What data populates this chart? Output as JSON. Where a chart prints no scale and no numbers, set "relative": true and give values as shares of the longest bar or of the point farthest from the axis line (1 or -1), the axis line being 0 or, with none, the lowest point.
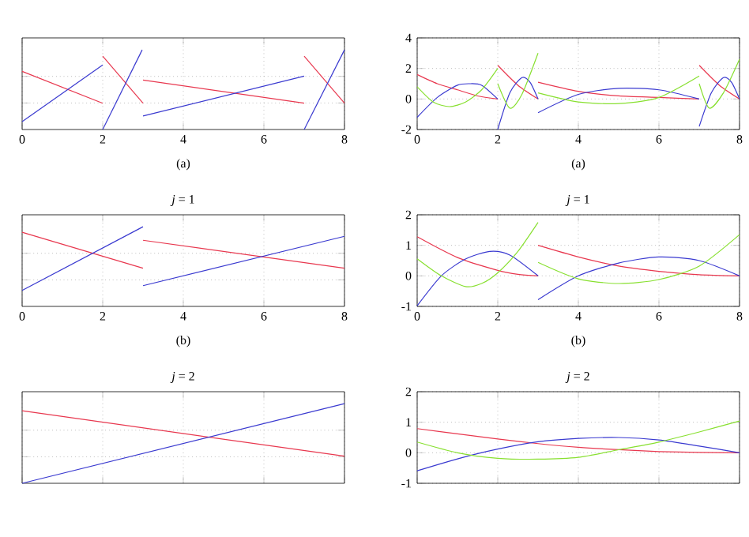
{
  "chart_data": [
    {
      "type": "line",
      "relative": true,
      "grid": true,
      "tick_labels": "x",
      "xlim": [
        0,
        8
      ],
      "xticks": [
        0,
        2,
        4,
        6,
        8
      ],
      "annotations": [
        "(a)"
      ],
      "series": [
        {
          "color": "#e8384f",
          "x": [
            0,
            2
          ],
          "values": [
            0.73,
            0.33
          ]
        },
        {
          "color": "#3a3ad0",
          "x": [
            0,
            2
          ],
          "values": [
            0.1,
            0.81
          ]
        },
        {
          "color": "#e8384f",
          "x": [
            2,
            3
          ],
          "values": [
            0.92,
            0.33
          ]
        },
        {
          "color": "#3a3ad0",
          "x": [
            2,
            2.98
          ],
          "values": [
            0,
            1
          ]
        },
        {
          "color": "#e8384f",
          "x": [
            3,
            7
          ],
          "values": [
            0.62,
            0.33
          ]
        },
        {
          "color": "#3a3ad0",
          "x": [
            3,
            7
          ],
          "values": [
            0.17,
            0.67
          ]
        },
        {
          "color": "#e8384f",
          "x": [
            7,
            8
          ],
          "values": [
            0.92,
            0.33
          ]
        },
        {
          "color": "#3a3ad0",
          "x": [
            7,
            8
          ],
          "values": [
            0,
            1
          ]
        }
      ]
    },
    {
      "type": "line",
      "grid": true,
      "xlim": [
        0,
        8
      ],
      "xticks": [
        0,
        2,
        4,
        6,
        8
      ],
      "ylim": [
        -2,
        4
      ],
      "yticks": [
        -2,
        0,
        2,
        4
      ],
      "annotations": [
        "(a)"
      ],
      "series": [
        {
          "color": "#e8384f",
          "x": [
            0,
            0.5,
            1,
            1.5,
            2
          ],
          "values": [
            1.6,
            1.0,
            0.6,
            0.2,
            0
          ]
        },
        {
          "color": "#3a3ad0",
          "x": [
            0,
            0.5,
            1,
            1.3,
            1.6,
            2
          ],
          "values": [
            -1.2,
            0.1,
            0.9,
            1.0,
            0.9,
            0
          ]
        },
        {
          "color": "#88e030",
          "x": [
            0,
            0.4,
            0.8,
            1.2,
            1.6,
            2
          ],
          "values": [
            0.8,
            -0.2,
            -0.5,
            -0.2,
            0.6,
            2.0
          ]
        },
        {
          "color": "#e8384f",
          "x": [
            2,
            2.5,
            3
          ],
          "values": [
            2.2,
            0.9,
            0
          ]
        },
        {
          "color": "#3a3ad0",
          "x": [
            2,
            2.3,
            2.6,
            2.8,
            3
          ],
          "values": [
            -2.0,
            0.4,
            1.4,
            1.1,
            0
          ]
        },
        {
          "color": "#88e030",
          "x": [
            2,
            2.3,
            2.6,
            3
          ],
          "values": [
            1.0,
            -0.6,
            0.3,
            3.0
          ]
        },
        {
          "color": "#e8384f",
          "x": [
            3,
            4,
            5,
            6,
            7
          ],
          "values": [
            1.1,
            0.5,
            0.2,
            0.1,
            0
          ]
        },
        {
          "color": "#3a3ad0",
          "x": [
            3,
            4,
            5,
            6,
            7
          ],
          "values": [
            -0.9,
            0.3,
            0.7,
            0.6,
            0
          ]
        },
        {
          "color": "#88e030",
          "x": [
            3,
            4,
            5,
            6,
            7
          ],
          "values": [
            0.4,
            -0.2,
            -0.3,
            0.1,
            1.5
          ]
        },
        {
          "color": "#e8384f",
          "x": [
            7,
            7.5,
            8
          ],
          "values": [
            2.2,
            0.9,
            0
          ]
        },
        {
          "color": "#3a3ad0",
          "x": [
            7,
            7.3,
            7.6,
            7.8,
            8
          ],
          "values": [
            -1.8,
            0.4,
            1.4,
            1.1,
            0
          ]
        },
        {
          "color": "#88e030",
          "x": [
            7,
            7.25,
            7.6,
            8
          ],
          "values": [
            1.0,
            -0.6,
            0.4,
            2.6
          ]
        }
      ]
    },
    {
      "type": "line",
      "relative": true,
      "grid": true,
      "tick_labels": "x",
      "title": "*j* = 1",
      "xlim": [
        0,
        8
      ],
      "xticks": [
        0,
        2,
        4,
        6,
        8
      ],
      "annotations": [
        "(b)"
      ],
      "series": [
        {
          "color": "#e8384f",
          "x": [
            0,
            3
          ],
          "values": [
            0.93,
            0.48
          ]
        },
        {
          "color": "#3a3ad0",
          "x": [
            0,
            3
          ],
          "values": [
            0.2,
            1.0
          ]
        },
        {
          "color": "#e8384f",
          "x": [
            3,
            8
          ],
          "values": [
            0.83,
            0.48
          ]
        },
        {
          "color": "#3a3ad0",
          "x": [
            3,
            8
          ],
          "values": [
            0.26,
            0.88
          ]
        }
      ]
    },
    {
      "type": "line",
      "grid": true,
      "title": "*j* = 1",
      "xlim": [
        0,
        8
      ],
      "xticks": [
        0,
        2,
        4,
        6,
        8
      ],
      "ylim": [
        -1,
        2
      ],
      "yticks": [
        -1,
        0,
        1,
        2
      ],
      "annotations": [
        "(b)"
      ],
      "series": [
        {
          "color": "#e8384f",
          "x": [
            0,
            1,
            2,
            2.5,
            3
          ],
          "values": [
            1.28,
            0.6,
            0.18,
            0.05,
            0
          ]
        },
        {
          "color": "#3a3ad0",
          "x": [
            0,
            0.6,
            1.2,
            1.8,
            2.3,
            3
          ],
          "values": [
            -0.98,
            0,
            0.55,
            0.8,
            0.68,
            0
          ]
        },
        {
          "color": "#88e030",
          "x": [
            0,
            0.6,
            1.2,
            1.6,
            2,
            2.5,
            3
          ],
          "values": [
            0.56,
            0,
            -0.35,
            -0.25,
            0.1,
            0.8,
            1.75
          ]
        },
        {
          "color": "#e8384f",
          "x": [
            3,
            4,
            5,
            6,
            7,
            8
          ],
          "values": [
            1.0,
            0.62,
            0.32,
            0.15,
            0.04,
            0
          ]
        },
        {
          "color": "#3a3ad0",
          "x": [
            3,
            4,
            5,
            6,
            7,
            8
          ],
          "values": [
            -0.78,
            0,
            0.42,
            0.62,
            0.5,
            0
          ]
        },
        {
          "color": "#88e030",
          "x": [
            3,
            4,
            5,
            6,
            7,
            8
          ],
          "values": [
            0.44,
            -0.1,
            -0.25,
            -0.12,
            0.32,
            1.35
          ]
        }
      ]
    },
    {
      "type": "line",
      "relative": true,
      "grid": true,
      "tick_labels": false,
      "title": "*j* = 2",
      "xlim": [
        0,
        8
      ],
      "xticks": [
        0,
        2,
        4,
        6,
        8
      ],
      "series": [
        {
          "color": "#e8384f",
          "x": [
            0,
            8
          ],
          "values": [
            0.91,
            0.34
          ]
        },
        {
          "color": "#3a3ad0",
          "x": [
            0,
            8
          ],
          "values": [
            0,
            1
          ]
        }
      ]
    },
    {
      "type": "line",
      "grid": true,
      "tick_labels": "y",
      "title": "*j* = 2",
      "xlim": [
        0,
        8
      ],
      "xticks": [
        0,
        2,
        4,
        6,
        8
      ],
      "ylim": [
        -1,
        2
      ],
      "yticks": [
        -1,
        0,
        1,
        2
      ],
      "series": [
        {
          "color": "#e8384f",
          "x": [
            0,
            1,
            2,
            3,
            4,
            5,
            6,
            7,
            8
          ],
          "values": [
            0.79,
            0.62,
            0.45,
            0.3,
            0.18,
            0.1,
            0.04,
            0.01,
            0
          ]
        },
        {
          "color": "#3a3ad0",
          "x": [
            0,
            1,
            2,
            3,
            4,
            5,
            6,
            7,
            8
          ],
          "values": [
            -0.59,
            -0.2,
            0.12,
            0.36,
            0.47,
            0.5,
            0.42,
            0.22,
            0
          ]
        },
        {
          "color": "#88e030",
          "x": [
            0,
            1,
            2,
            3,
            4,
            5,
            6,
            7,
            8
          ],
          "values": [
            0.35,
            0,
            -0.18,
            -0.21,
            -0.15,
            0.1,
            0.35,
            0.68,
            1.04
          ]
        }
      ]
    }
  ]
}
